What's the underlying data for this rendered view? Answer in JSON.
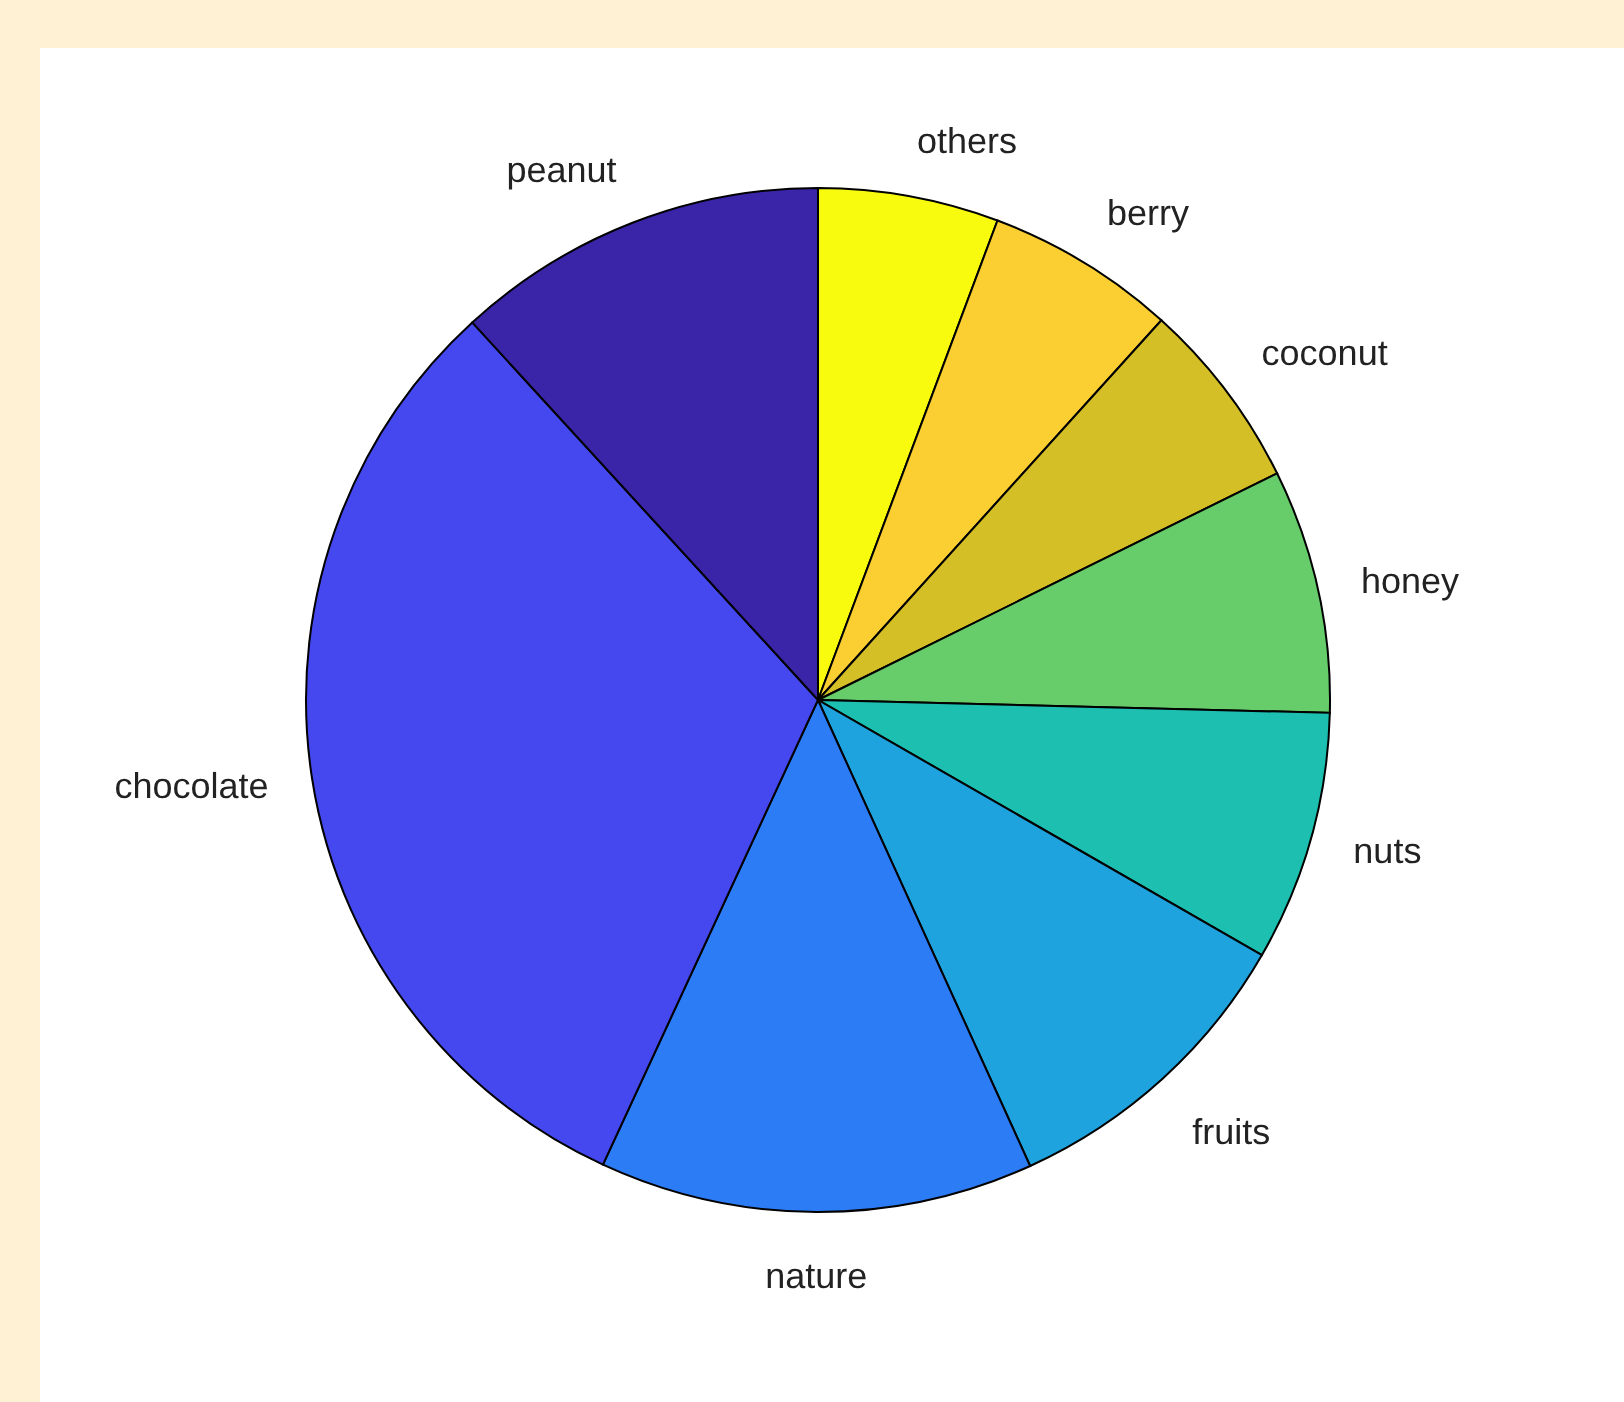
{
  "chart_data": {
    "type": "pie",
    "categories": [
      "others",
      "berry",
      "coconut",
      "honey",
      "nuts",
      "fruits",
      "nature",
      "chocolate",
      "peanut"
    ],
    "values": [
      5.7,
      6.0,
      6.0,
      7.7,
      7.9,
      9.9,
      13.7,
      31.3,
      11.8
    ],
    "colors": [
      "#f9fb0e",
      "#fbcf31",
      "#d4bf26",
      "#67cc6a",
      "#1cbfb0",
      "#1ea3de",
      "#2c7cf6",
      "#4548ee",
      "#3a25a8"
    ],
    "legend": false
  }
}
